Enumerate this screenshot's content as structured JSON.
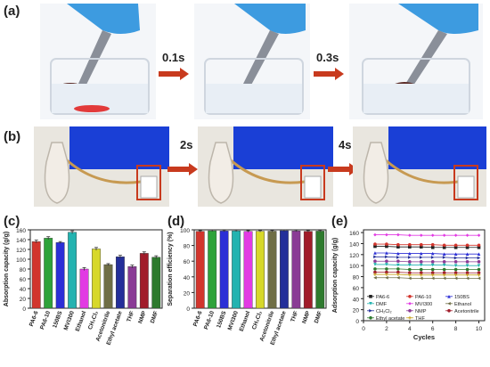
{
  "panel_labels": {
    "a": "(a)",
    "b": "(b)",
    "c": "(c)",
    "d": "(d)",
    "e": "(e)"
  },
  "time_labels": {
    "a1": "0.1s",
    "a2": "0.3s",
    "b1": "2s",
    "b2": "4s"
  },
  "colors": {
    "arrow": "#c83a1e",
    "glove": "#3d9be0",
    "blue_screen": "#1a3fd6",
    "tube": "#c79a52"
  },
  "chart_data": [
    {
      "type": "bar",
      "ylabel": "Absorption capacity (g/g)",
      "ylim": [
        0,
        160
      ],
      "yticks": [
        0,
        20,
        40,
        60,
        80,
        100,
        120,
        140,
        160
      ],
      "categories": [
        "PA6-6",
        "PA6-10",
        "150BS",
        "MVI300",
        "Ethanol",
        "CH2Cl2",
        "Acetonitrile",
        "Ethyl acetate",
        "THF",
        "NMP",
        "DMF"
      ],
      "category_labels": [
        "PA6-6",
        "PA6-10",
        "150BS",
        "MVI300",
        "Ethanol",
        "CH₂Cl₂",
        "Acetonitrile",
        "Ethyl acetate",
        "THF",
        "NMP",
        "DMF"
      ],
      "values": [
        136,
        143,
        134,
        155,
        80,
        121,
        89,
        105,
        85,
        112,
        104
      ],
      "errors": [
        3,
        3,
        2,
        3,
        3,
        3,
        2,
        3,
        3,
        3,
        3
      ],
      "bar_colors": [
        "#d2352d",
        "#2ea33a",
        "#2c2fd6",
        "#23b3b0",
        "#e23ae3",
        "#d7d82a",
        "#6f6e46",
        "#242f9a",
        "#8a3b95",
        "#a11c2a",
        "#2e7a2e"
      ]
    },
    {
      "type": "bar",
      "ylabel": "Separation efficiency (%)",
      "ylim": [
        0,
        100
      ],
      "yticks": [
        0,
        20,
        40,
        60,
        80,
        100
      ],
      "categories": [
        "PA6-6",
        "PA6-10",
        "150BS",
        "MVI300",
        "Ethanol",
        "CH2Cl2",
        "Acetonitrile",
        "Ethyl acetate",
        "THF",
        "NMP",
        "DMF"
      ],
      "category_labels": [
        "PA6-6",
        "PA6-10",
        "150BS",
        "MVI300",
        "Ethanol",
        "CH₂Cl₂",
        "Acetonitrile",
        "Ethyl acetate",
        "THF",
        "NMP",
        "DMF"
      ],
      "values": [
        98.0,
        98.8,
        98.5,
        98.7,
        98.0,
        98.2,
        98.3,
        98.9,
        98.6,
        98.1,
        98.4
      ],
      "errors": [
        1.0,
        1.0,
        1.0,
        1.0,
        1.0,
        1.0,
        1.0,
        1.0,
        1.0,
        1.0,
        1.0
      ],
      "bar_colors": [
        "#d2352d",
        "#2ea33a",
        "#2c2fd6",
        "#23b3b0",
        "#e23ae3",
        "#d7d82a",
        "#6f6e46",
        "#242f9a",
        "#8a3b95",
        "#a11c2a",
        "#2e7a2e"
      ]
    },
    {
      "type": "line",
      "xlabel": "Cycles",
      "ylabel": "Adsorption capacity (g/g)",
      "xlim": [
        0,
        10.5
      ],
      "ylim": [
        0,
        165
      ],
      "xticks": [
        0,
        2,
        4,
        6,
        8,
        10
      ],
      "yticks": [
        0,
        20,
        40,
        60,
        80,
        100,
        120,
        140,
        160
      ],
      "x": [
        1,
        2,
        3,
        4,
        5,
        6,
        7,
        8,
        9,
        10
      ],
      "legend_placement": "bottom",
      "series": [
        {
          "name": "PA6-6",
          "color": "#222222",
          "marker": "square",
          "values": [
            135,
            135,
            134,
            134,
            134,
            133,
            133,
            133,
            133,
            133
          ]
        },
        {
          "name": "PA6-10",
          "color": "#d2352d",
          "marker": "circle",
          "values": [
            139,
            139,
            138,
            138,
            138,
            138,
            137,
            137,
            137,
            137
          ]
        },
        {
          "name": "150BS",
          "color": "#2c2fd6",
          "marker": "triangle",
          "values": [
            123,
            123,
            122,
            122,
            122,
            122,
            121,
            121,
            121,
            121
          ]
        },
        {
          "name": "DMF",
          "color": "#23b3b0",
          "marker": "triangle-down",
          "values": [
            102,
            102,
            101,
            101,
            101,
            101,
            101,
            100,
            100,
            100
          ]
        },
        {
          "name": "MVI300",
          "color": "#e23ae3",
          "marker": "diamond",
          "values": [
            156,
            156,
            156,
            155,
            155,
            155,
            155,
            155,
            155,
            155
          ]
        },
        {
          "name": "Ethanol",
          "color": "#6f6e46",
          "marker": "triangle-left",
          "values": [
            78,
            78,
            78,
            77,
            77,
            77,
            77,
            77,
            77,
            77
          ]
        },
        {
          "name": "CH2Cl2",
          "label": "CH₂Cl₂",
          "color": "#242f9a",
          "marker": "triangle-right",
          "values": [
            116,
            116,
            115,
            115,
            115,
            115,
            115,
            114,
            114,
            114
          ]
        },
        {
          "name": "NMP",
          "color": "#8a3b95",
          "marker": "hexagon",
          "values": [
            108,
            108,
            108,
            107,
            107,
            107,
            107,
            107,
            107,
            107
          ]
        },
        {
          "name": "Acetonitrile",
          "color": "#a11c2a",
          "marker": "star",
          "values": [
            88,
            88,
            88,
            87,
            87,
            87,
            87,
            87,
            87,
            87
          ]
        },
        {
          "name": "Ethyl acetate",
          "color": "#2e7a2e",
          "marker": "pentagon",
          "values": [
            94,
            94,
            94,
            93,
            93,
            93,
            93,
            93,
            93,
            93
          ]
        },
        {
          "name": "THF",
          "color": "#c7a21c",
          "marker": "plus",
          "values": [
            84,
            84,
            84,
            83,
            83,
            83,
            83,
            83,
            83,
            83
          ]
        }
      ]
    }
  ]
}
